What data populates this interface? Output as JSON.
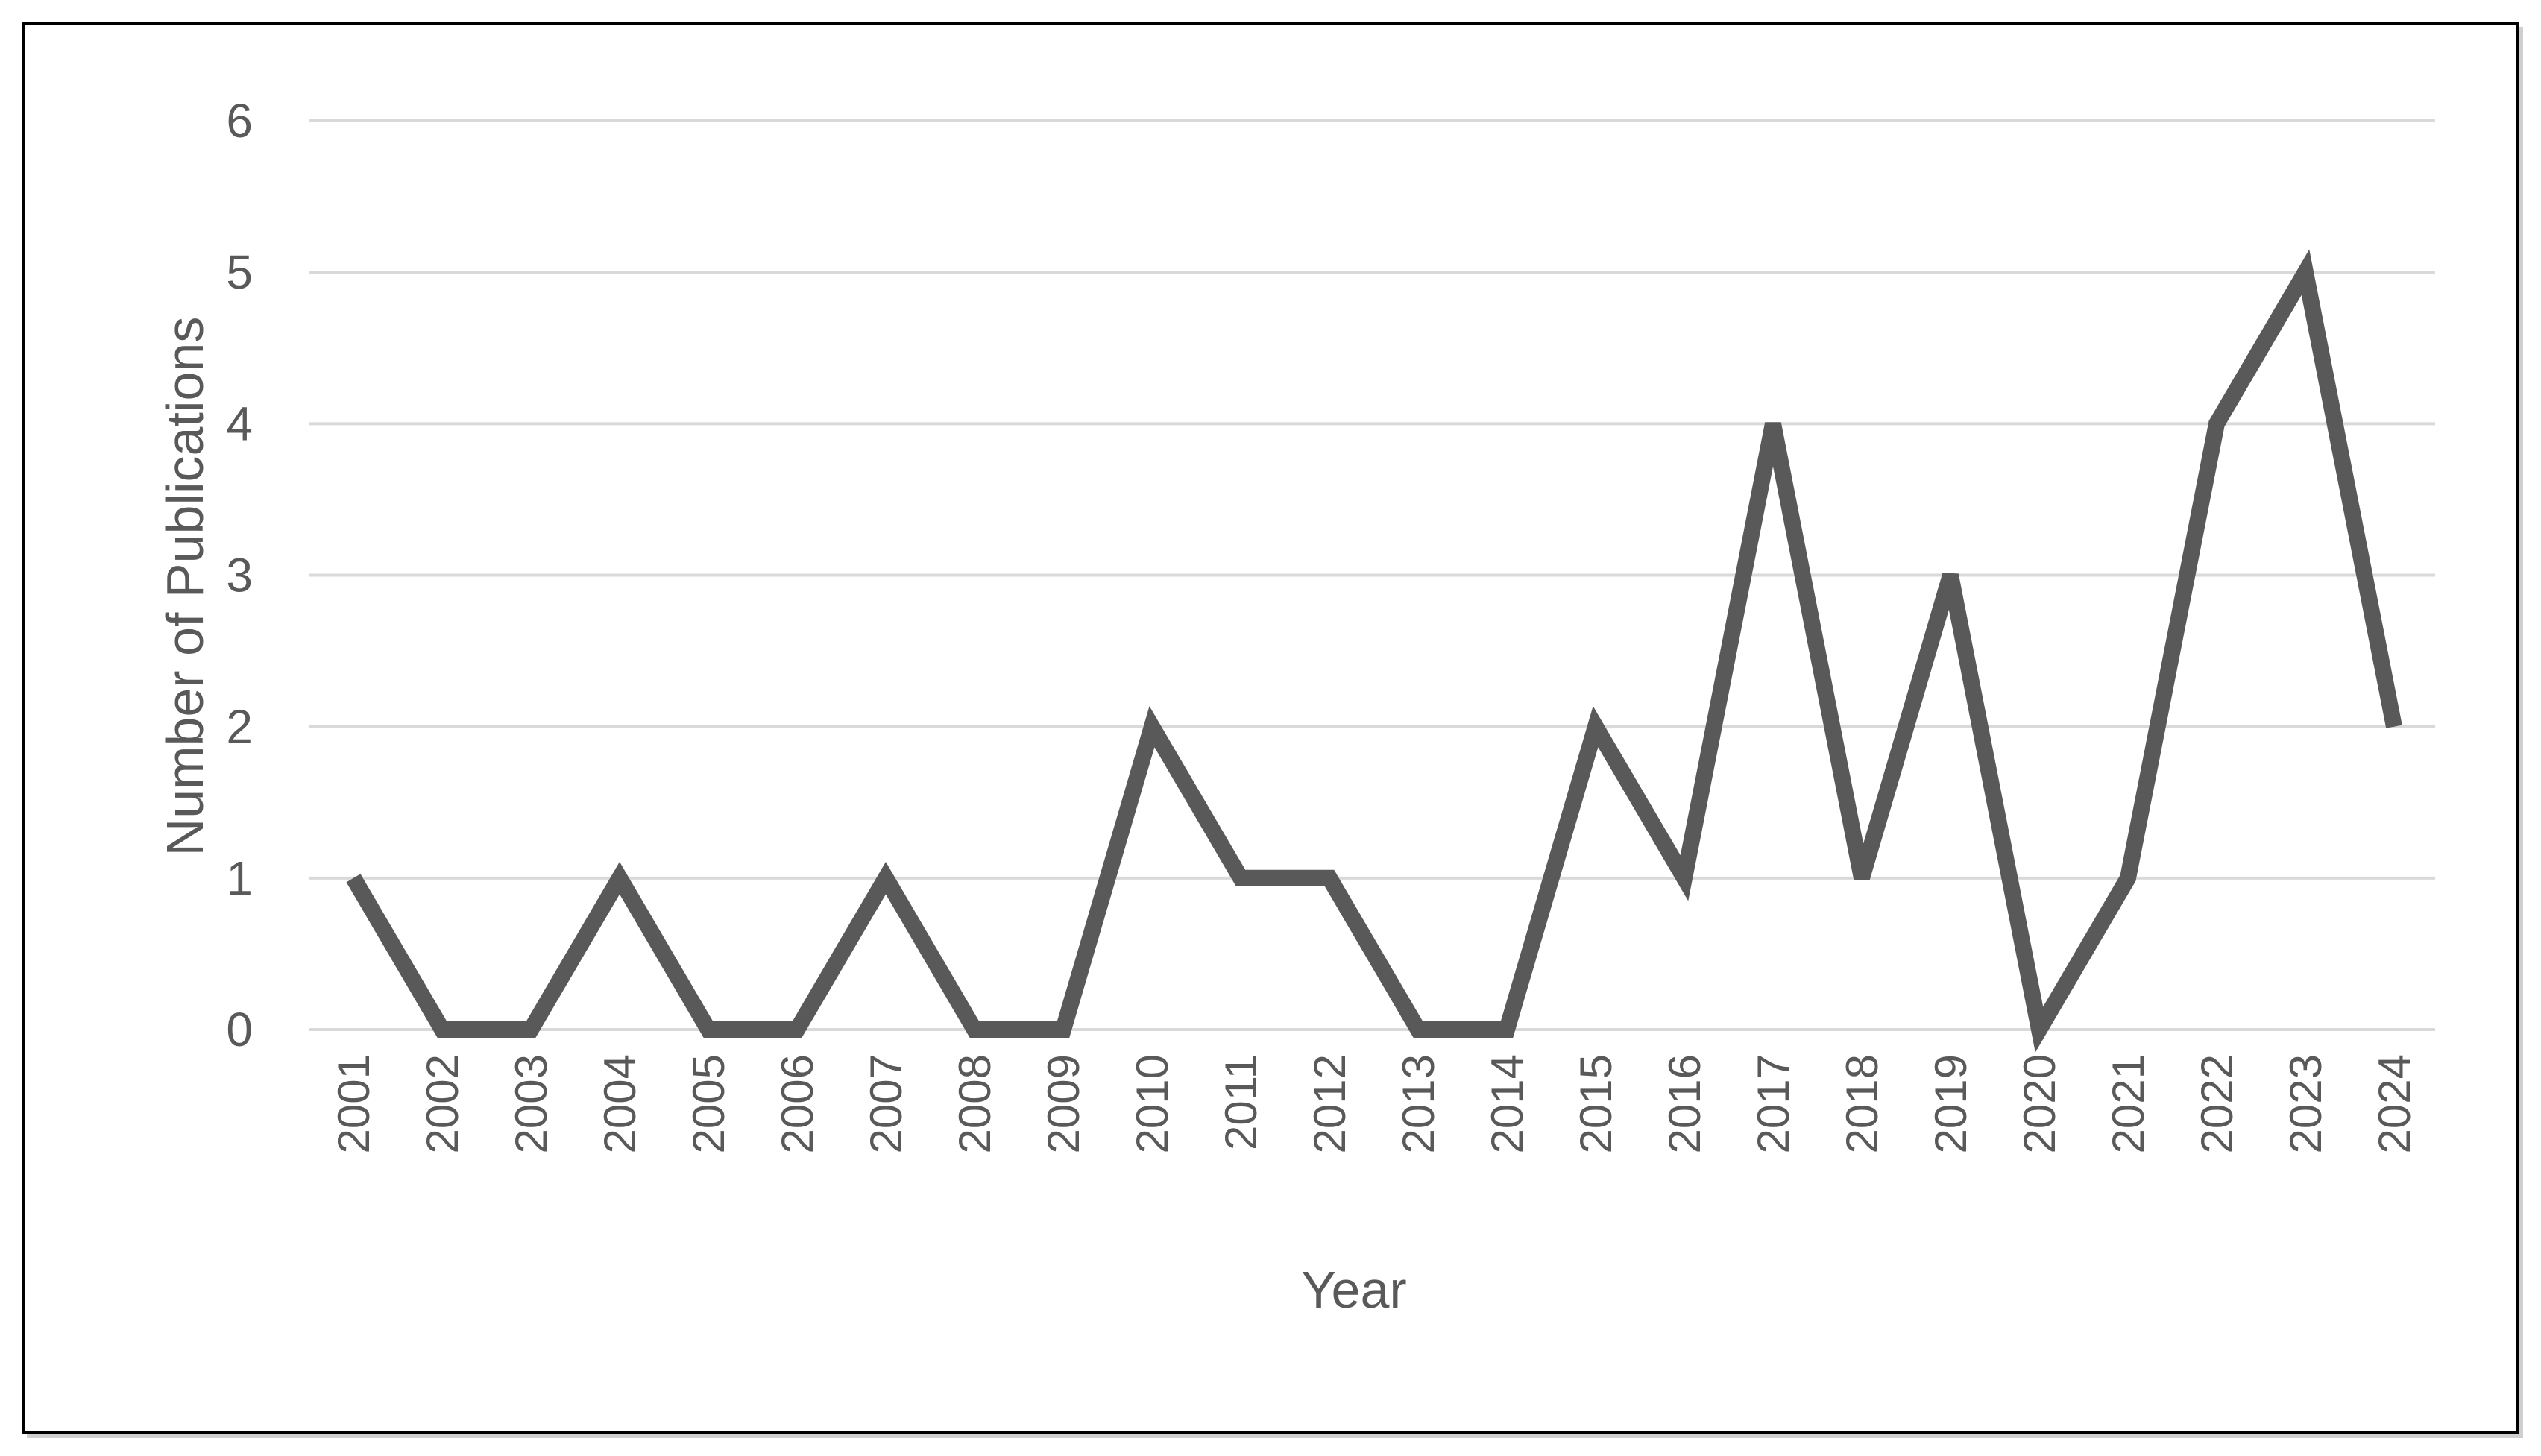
{
  "chart_data": {
    "type": "line",
    "title": "",
    "xlabel": "Year",
    "ylabel": "Number of Publications",
    "ylim": [
      0,
      6
    ],
    "yticks": [
      0,
      1,
      2,
      3,
      4,
      5,
      6
    ],
    "grid": true,
    "legend": "none",
    "line_color": "#595959",
    "grid_color": "#d9d9d9",
    "x": [
      "2001",
      "2002",
      "2003",
      "2004",
      "2005",
      "2006",
      "2007",
      "2008",
      "2009",
      "2010",
      "2011",
      "2012",
      "2013",
      "2014",
      "2015",
      "2016",
      "2017",
      "2018",
      "2019",
      "2020",
      "2021",
      "2022",
      "2023",
      "2024"
    ],
    "series": [
      {
        "values": [
          1,
          0,
          0,
          1,
          0,
          0,
          1,
          0,
          0,
          2,
          1,
          1,
          0,
          0,
          2,
          1,
          4,
          1,
          3,
          0,
          1,
          4,
          5,
          2
        ]
      }
    ]
  }
}
